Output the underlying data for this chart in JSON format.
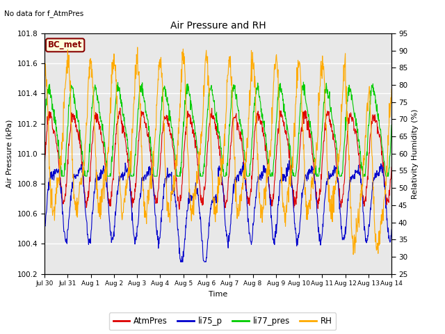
{
  "title": "Air Pressure and RH",
  "subtitle": "No data for f_AtmPres",
  "xlabel": "Time",
  "ylabel_left": "Air Pressure (kPa)",
  "ylabel_right": "Relativity Humidity (%)",
  "xlim_days": [
    0,
    15
  ],
  "ylim_left": [
    100.2,
    101.8
  ],
  "ylim_right": [
    25,
    95
  ],
  "yticks_left": [
    100.2,
    100.4,
    100.6,
    100.8,
    101.0,
    101.2,
    101.4,
    101.6,
    101.8
  ],
  "yticks_right": [
    25,
    30,
    35,
    40,
    45,
    50,
    55,
    60,
    65,
    70,
    75,
    80,
    85,
    90,
    95
  ],
  "xtick_labels": [
    "Jul 30",
    "Jul 31",
    "Aug 1",
    "Aug 2",
    "Aug 3",
    "Aug 4",
    "Aug 5",
    "Aug 6",
    "Aug 7",
    "Aug 8",
    "Aug 9",
    "Aug 10",
    "Aug 11",
    "Aug 12",
    "Aug 13",
    "Aug 14"
  ],
  "legend_labels": [
    "AtmPres",
    "li75_p",
    "li77_pres",
    "RH"
  ],
  "legend_colors": [
    "#dd0000",
    "#0000cc",
    "#00cc00",
    "#ffaa00"
  ],
  "color_AtmPres": "#dd0000",
  "color_li75_p": "#0000cc",
  "color_li77_pres": "#00cc00",
  "color_RH": "#ffaa00",
  "bc_met_label": "BC_met",
  "bc_met_color": "#880000",
  "bc_met_bg": "#ffffdd",
  "plot_bg": "#e8e8e8"
}
